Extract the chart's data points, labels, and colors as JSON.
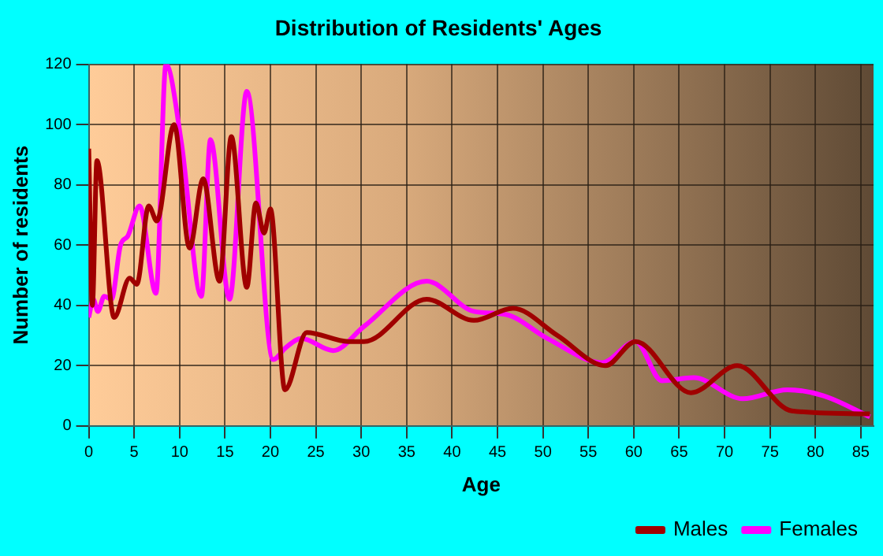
{
  "chart_data": {
    "type": "line",
    "title": "Distribution of Residents' Ages",
    "xlabel": "Age",
    "ylabel": "Number of residents",
    "xlim": [
      0,
      86.4
    ],
    "xticks": [
      0,
      5,
      10,
      15,
      20,
      25,
      30,
      35,
      40,
      45,
      50,
      55,
      60,
      65,
      70,
      75,
      80,
      85
    ],
    "ylim": [
      0,
      120
    ],
    "yticks": [
      0,
      20,
      40,
      60,
      80,
      100,
      120
    ],
    "grid": true,
    "legend": "bottom",
    "marker": "none",
    "line_style": "solid",
    "series": [
      {
        "name": "Males",
        "color": "#a00000",
        "x": [
          0,
          0.4,
          0.9,
          2.8,
          4.5,
          5.3,
          6.6,
          7.5,
          9.4,
          11.1,
          12.6,
          14.4,
          15.7,
          17.4,
          18.4,
          19.3,
          20,
          21.6,
          24,
          28.6,
          30.3,
          37.2,
          42.4,
          46.7,
          51.6,
          56.9,
          60.2,
          66.3,
          71.4,
          77.4,
          86
        ],
        "values": [
          92,
          40,
          88,
          36,
          49,
          47,
          73,
          68,
          100,
          59,
          82,
          48,
          96,
          46,
          74,
          64,
          72,
          12,
          31,
          28,
          28,
          42,
          35,
          39,
          30,
          20,
          28,
          11,
          20,
          5,
          4
        ]
      },
      {
        "name": "Females",
        "color": "#ff00ff",
        "x": [
          0,
          0.5,
          1,
          1.7,
          2.5,
          3.5,
          4.3,
          5.6,
          7.4,
          8.5,
          10.2,
          12.4,
          13.4,
          15.5,
          17.4,
          20.3,
          21.7,
          23.4,
          26.9,
          30.3,
          37.2,
          42.4,
          45.9,
          50.5,
          56.5,
          60.2,
          63.1,
          66.6,
          72,
          76.9,
          80.9,
          86
        ],
        "values": [
          36,
          42,
          38,
          43,
          42,
          60,
          63,
          73,
          44,
          120,
          94,
          43,
          95,
          42,
          111,
          22,
          26,
          29,
          25,
          33,
          48,
          38,
          37,
          29,
          21,
          28,
          15,
          16,
          9,
          12,
          10,
          3
        ]
      }
    ]
  }
}
